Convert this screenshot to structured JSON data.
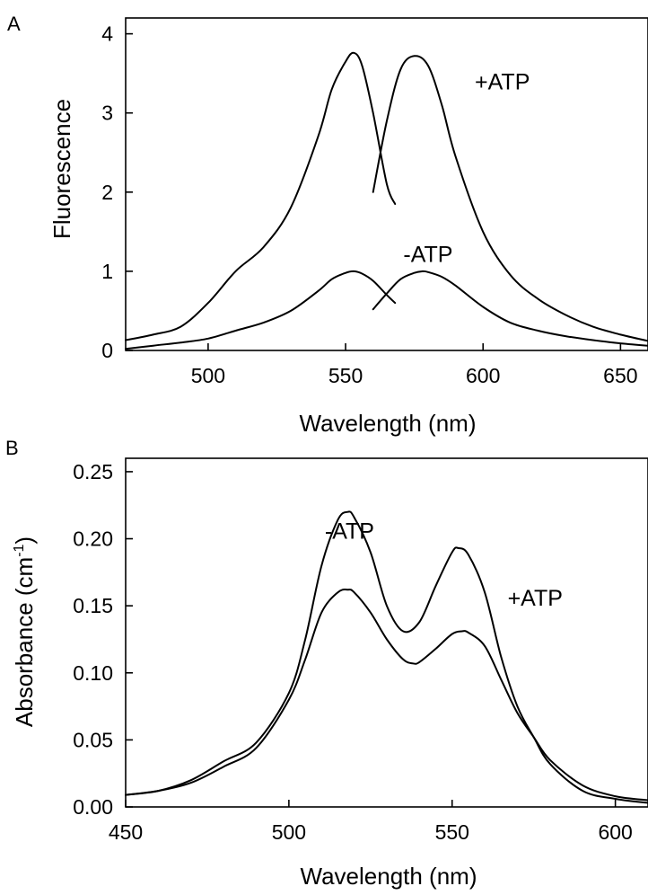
{
  "chart_data": [
    {
      "panel": "A",
      "type": "line",
      "xlabel": "Wavelength (nm)",
      "ylabel": "Fluorescence",
      "xlim": [
        470,
        660
      ],
      "ylim": [
        0,
        4.2
      ],
      "xticks": [
        500,
        550,
        600,
        650
      ],
      "yticks": [
        0,
        1,
        2,
        3,
        4
      ],
      "series": [
        {
          "name": "+ATP",
          "x": [
            470,
            480,
            490,
            500,
            510,
            520,
            530,
            540,
            545,
            550,
            553,
            556,
            560,
            565,
            568
          ],
          "y": [
            0.13,
            0.2,
            0.3,
            0.6,
            1.0,
            1.3,
            1.8,
            2.7,
            3.3,
            3.65,
            3.76,
            3.6,
            3.0,
            2.1,
            1.85
          ]
        },
        {
          "name": "+ATP",
          "x": [
            560,
            565,
            570,
            575,
            580,
            585,
            590,
            600,
            610,
            620,
            630,
            640,
            650,
            660
          ],
          "y": [
            2.0,
            2.9,
            3.55,
            3.72,
            3.6,
            3.1,
            2.45,
            1.5,
            0.95,
            0.65,
            0.45,
            0.3,
            0.2,
            0.12
          ]
        },
        {
          "name": "-ATP",
          "x": [
            470,
            480,
            490,
            500,
            510,
            520,
            530,
            540,
            545,
            550,
            553,
            556,
            560,
            565,
            568
          ],
          "y": [
            0.02,
            0.06,
            0.1,
            0.15,
            0.25,
            0.35,
            0.5,
            0.75,
            0.9,
            0.98,
            1.0,
            0.97,
            0.88,
            0.7,
            0.6
          ]
        },
        {
          "name": "-ATP",
          "x": [
            560,
            565,
            570,
            575,
            578,
            580,
            585,
            590,
            600,
            610,
            620,
            630,
            640,
            650,
            660
          ],
          "y": [
            0.52,
            0.72,
            0.9,
            0.98,
            1.0,
            0.99,
            0.93,
            0.82,
            0.55,
            0.35,
            0.25,
            0.18,
            0.13,
            0.09,
            0.06
          ]
        }
      ],
      "annotations": [
        {
          "text": "+ATP",
          "x": 597,
          "y": 3.3
        },
        {
          "text": "-ATP",
          "x": 571,
          "y": 1.12
        }
      ]
    },
    {
      "panel": "B",
      "type": "line",
      "xlabel": "Wavelength (nm)",
      "ylabel": "Absorbance (cm",
      "ylabel_sup": "-1",
      "ylabel_close": ")",
      "xlim": [
        450,
        610
      ],
      "ylim": [
        0,
        0.26
      ],
      "xticks": [
        450,
        500,
        550,
        600
      ],
      "yticks": [
        0.0,
        0.05,
        0.1,
        0.15,
        0.2,
        0.25
      ],
      "ytick_labels": [
        "0.00",
        "0.05",
        "0.10",
        "0.15",
        "0.20",
        "0.25"
      ],
      "series": [
        {
          "name": "-ATP",
          "x": [
            450,
            460,
            470,
            480,
            490,
            500,
            505,
            510,
            515,
            518,
            520,
            525,
            530,
            535,
            540,
            545,
            550,
            552,
            555,
            560,
            565,
            570,
            575,
            580,
            590,
            600,
            610
          ],
          "y": [
            0.009,
            0.012,
            0.02,
            0.034,
            0.048,
            0.085,
            0.125,
            0.18,
            0.214,
            0.22,
            0.216,
            0.19,
            0.15,
            0.131,
            0.138,
            0.165,
            0.19,
            0.193,
            0.188,
            0.16,
            0.112,
            0.075,
            0.052,
            0.032,
            0.012,
            0.006,
            0.003
          ]
        },
        {
          "name": "+ATP",
          "x": [
            450,
            460,
            470,
            480,
            490,
            500,
            505,
            510,
            515,
            518,
            520,
            525,
            530,
            535,
            538,
            540,
            545,
            550,
            553,
            555,
            560,
            565,
            570,
            575,
            580,
            590,
            600,
            610
          ],
          "y": [
            0.009,
            0.012,
            0.018,
            0.03,
            0.044,
            0.08,
            0.11,
            0.145,
            0.16,
            0.162,
            0.16,
            0.145,
            0.125,
            0.11,
            0.107,
            0.108,
            0.118,
            0.129,
            0.131,
            0.13,
            0.12,
            0.095,
            0.07,
            0.052,
            0.035,
            0.016,
            0.008,
            0.005
          ]
        }
      ],
      "annotations": [
        {
          "text": "-ATP",
          "x": 511,
          "y": 0.2
        },
        {
          "text": "+ATP",
          "x": 567,
          "y": 0.15
        }
      ]
    }
  ]
}
